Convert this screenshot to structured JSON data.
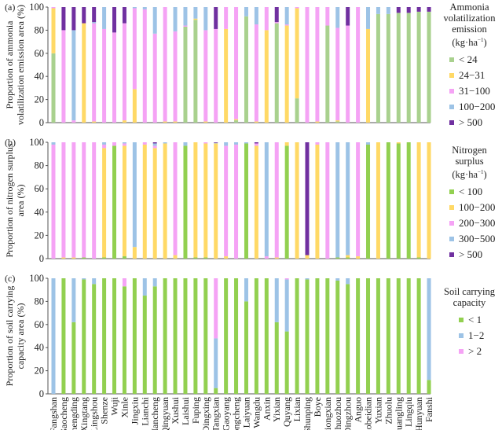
{
  "chart_data": [
    {
      "type": "bar",
      "stacked": true,
      "panel_label": "(a)",
      "ylabel_lines": [
        "Proportion of ammonia",
        "volatilization emission area (%)"
      ],
      "ylim": [
        0,
        100
      ],
      "yticks": [
        "0",
        "20",
        "40",
        "60",
        "80",
        "100"
      ],
      "legend_title_lines": [
        "Ammonia",
        "volatilization",
        "emission (kg·ha"
      ],
      "legend_title_sup": "−1",
      "legend_title_tail": ")",
      "series": [
        {
          "name": "< 24",
          "color": "#a9d18e",
          "values": [
            60,
            0,
            0,
            0,
            0,
            0,
            0,
            0,
            0,
            0,
            0,
            0,
            0,
            83,
            89,
            0,
            0,
            0,
            2,
            92,
            0,
            0,
            86,
            0,
            21,
            0,
            0,
            84,
            1,
            0,
            0,
            0,
            94,
            94,
            95,
            95,
            96,
            96
          ]
        },
        {
          "name": "24−31",
          "color": "#ffd966",
          "values": [
            39,
            0,
            0,
            86,
            1,
            0,
            0,
            2,
            29,
            0,
            0,
            1,
            1,
            0,
            1,
            1,
            0,
            81,
            1,
            0,
            1,
            80,
            0,
            84,
            78,
            0,
            1,
            0,
            1,
            0,
            0,
            81,
            0,
            0,
            0,
            0,
            0,
            0
          ]
        },
        {
          "name": "31−100",
          "color": "#f5a3f5",
          "values": [
            1,
            80,
            2,
            0,
            85,
            81,
            78,
            84,
            70,
            98,
            77,
            99,
            78,
            1,
            0,
            79,
            81,
            19,
            97,
            0,
            84,
            20,
            1,
            1,
            1,
            100,
            99,
            16,
            80,
            84,
            100,
            0,
            0,
            0,
            0,
            0,
            0,
            0
          ]
        },
        {
          "name": "100−200",
          "color": "#9dc3e6",
          "values": [
            0,
            0,
            78,
            0,
            1,
            19,
            0,
            0,
            1,
            2,
            23,
            0,
            21,
            16,
            10,
            20,
            0,
            0,
            0,
            8,
            15,
            0,
            0,
            15,
            0,
            0,
            0,
            0,
            18,
            0,
            0,
            19,
            6,
            6,
            0,
            0,
            0,
            0
          ]
        },
        {
          "name": "> 500",
          "color": "#7030a0",
          "values": [
            0,
            20,
            20,
            14,
            13,
            0,
            22,
            14,
            0,
            0,
            0,
            0,
            0,
            0,
            0,
            0,
            19,
            0,
            0,
            0,
            0,
            0,
            13,
            0,
            0,
            0,
            0,
            0,
            0,
            16,
            0,
            0,
            0,
            0,
            5,
            5,
            4,
            4
          ]
        }
      ]
    },
    {
      "type": "bar",
      "stacked": true,
      "panel_label": "(b)",
      "ylabel_lines": [
        "Proportion of nitrogen surplus",
        "area (%)"
      ],
      "ylim": [
        0,
        100
      ],
      "yticks": [
        "0",
        "20",
        "40",
        "60",
        "80",
        "100"
      ],
      "legend_title_lines": [
        "Nitrogen",
        "surplus (kg·ha"
      ],
      "legend_title_sup": "−1",
      "legend_title_tail": ")",
      "series": [
        {
          "name": "< 100",
          "color": "#92d050",
          "values": [
            0,
            0,
            0,
            1,
            0,
            1,
            97,
            2,
            0,
            0,
            0,
            0,
            0,
            97,
            1,
            1,
            0,
            0,
            0,
            99,
            0,
            0,
            0,
            97,
            0,
            0,
            0,
            0,
            1,
            1,
            0,
            98,
            0,
            100,
            99,
            100,
            1,
            0
          ]
        },
        {
          "name": "100−200",
          "color": "#ffd966",
          "values": [
            0,
            1,
            1,
            0,
            0,
            94,
            0,
            95,
            10,
            98,
            95,
            99,
            3,
            0,
            99,
            98,
            99,
            2,
            0,
            0,
            97,
            0,
            1,
            3,
            100,
            3,
            98,
            0,
            0,
            2,
            2,
            0,
            100,
            0,
            1,
            0,
            99,
            100
          ]
        },
        {
          "name": "200−300",
          "color": "#f5a3f5",
          "values": [
            98,
            99,
            99,
            99,
            100,
            3,
            3,
            2,
            0,
            2,
            2,
            0,
            97,
            0,
            0,
            1,
            0,
            95,
            98,
            0,
            2,
            2,
            99,
            0,
            0,
            0,
            2,
            100,
            0,
            0,
            98,
            0,
            0,
            0,
            0,
            0,
            0,
            0
          ]
        },
        {
          "name": "300−500",
          "color": "#9dc3e6",
          "values": [
            2,
            0,
            0,
            0,
            0,
            2,
            0,
            1,
            90,
            0,
            2,
            1,
            0,
            3,
            0,
            0,
            0.5,
            3,
            2,
            1,
            0,
            98,
            0,
            0,
            0,
            0,
            0,
            0,
            99,
            97,
            0,
            2,
            0,
            0,
            0,
            0,
            0,
            0
          ]
        },
        {
          "name": "> 500",
          "color": "#7030a0",
          "values": [
            0,
            0,
            0,
            0,
            0,
            0,
            0,
            0,
            0,
            0,
            1,
            0,
            0,
            0,
            0,
            0,
            0.5,
            0,
            0,
            0,
            1,
            0,
            0,
            0,
            0,
            97,
            0,
            0,
            0,
            0,
            0,
            0,
            0,
            0,
            0,
            0,
            0,
            0
          ]
        }
      ]
    },
    {
      "type": "bar",
      "stacked": true,
      "panel_label": "(c)",
      "ylabel_lines": [
        "Proportion of soil carrying",
        "capacity area (%)"
      ],
      "ylim": [
        0,
        100
      ],
      "yticks": [
        "0",
        "20",
        "40",
        "60",
        "80",
        "100"
      ],
      "legend_title_lines": [
        "Soil carrying",
        "capacity"
      ],
      "legend_title_sup": "",
      "legend_title_tail": "",
      "series": [
        {
          "name": "< 1",
          "color": "#92d050",
          "values": [
            0,
            100,
            62,
            99,
            95,
            100,
            100,
            93,
            100,
            85,
            93,
            100,
            100,
            100,
            100,
            100,
            5,
            100,
            100,
            80,
            100,
            100,
            62,
            54,
            100,
            99,
            100,
            100,
            98,
            95,
            100,
            100,
            100,
            100,
            100,
            100,
            100,
            12
          ]
        },
        {
          "name": "1−2",
          "color": "#9dc3e6",
          "values": [
            100,
            0,
            38,
            1,
            5,
            0,
            0,
            0,
            0,
            15,
            7,
            0,
            0,
            0,
            0,
            0,
            43,
            0,
            0,
            20,
            0,
            0,
            38,
            45,
            0,
            1,
            0,
            0,
            2,
            5,
            0,
            0,
            0,
            0,
            0,
            0,
            0,
            88
          ]
        },
        {
          "name": "> 2",
          "color": "#f5a3f5",
          "values": [
            0,
            0,
            0,
            0,
            0,
            0,
            0,
            7,
            0,
            0,
            0,
            0,
            0,
            0,
            0,
            0,
            52,
            0,
            0,
            0,
            0,
            0,
            0,
            1,
            0,
            0,
            0,
            0,
            0,
            0,
            0,
            0,
            0,
            0,
            0,
            0,
            0,
            0
          ]
        }
      ]
    }
  ],
  "categories": [
    "Fangshan",
    "Gaocheng",
    "Zhengding",
    "Xingtang",
    "Lingshou",
    "Shenze",
    "Wuji",
    "Xinle",
    "Jingxiu",
    "Lianchi",
    "Mancheng",
    "Qingyuan",
    "Xushui",
    "Laishui",
    "Fuping",
    "Dingxing",
    "Tangxian",
    "Gaoyang",
    "Rongcheng",
    "Laiyuan",
    "Wangdu",
    "Anxin",
    "Yixian",
    "Quyang",
    "Lixian",
    "Shunping",
    "Boye",
    "Xiongxian",
    "Zhuozhou",
    "Dingzhou",
    "Anguo",
    "Gaobeidian",
    "Yuxian",
    "Zhuolu",
    "Guangling",
    "Lingqiu",
    "Hunyuan",
    "Fanshi"
  ]
}
